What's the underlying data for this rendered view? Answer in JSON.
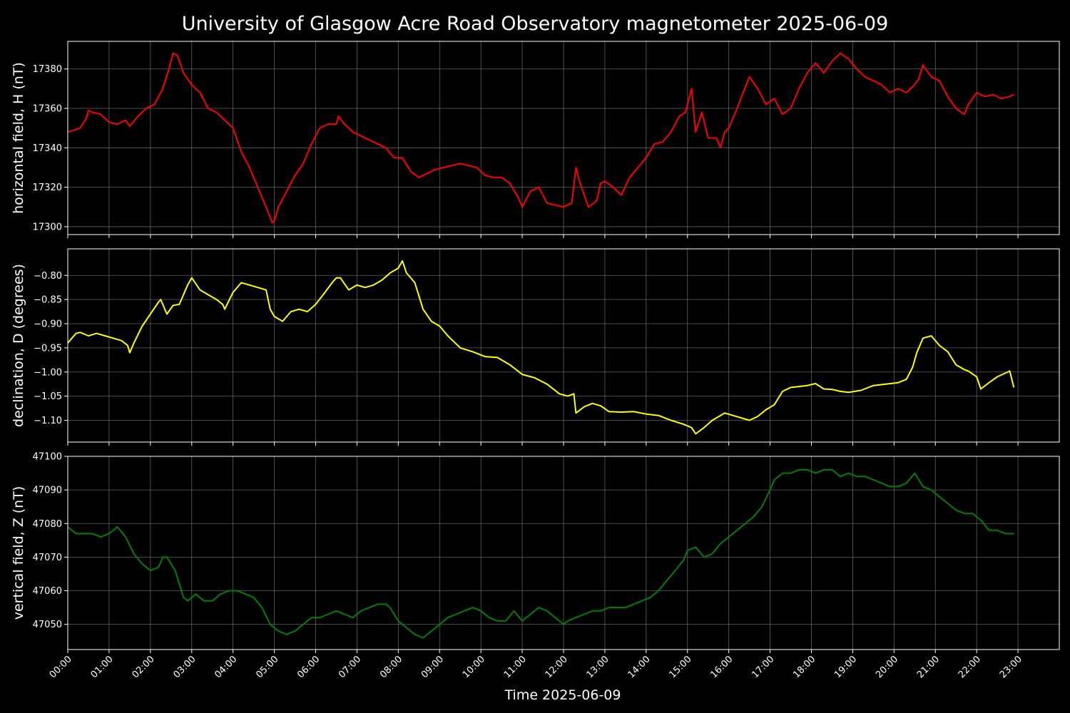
{
  "title": "University of Glasgow Acre Road Observatory magnetometer 2025-06-09",
  "xlabel": "Time 2025-06-09",
  "x_ticks": [
    "00:00",
    "01:00",
    "02:00",
    "03:00",
    "04:00",
    "05:00",
    "06:00",
    "07:00",
    "08:00",
    "09:00",
    "10:00",
    "11:00",
    "12:00",
    "13:00",
    "14:00",
    "15:00",
    "16:00",
    "17:00",
    "18:00",
    "19:00",
    "20:00",
    "21:00",
    "22:00",
    "23:00"
  ],
  "chart_data": [
    {
      "type": "line",
      "ylabel": "horizontal field, H (nT)",
      "color": "#ff0000",
      "xlim": [
        0,
        24
      ],
      "ylim": [
        17296,
        17394
      ],
      "yticks": [
        17300,
        17320,
        17340,
        17360,
        17380
      ],
      "grid": true,
      "x": [
        0,
        0.3,
        0.45,
        0.5,
        0.6,
        0.8,
        1.0,
        1.2,
        1.4,
        1.5,
        1.7,
        1.9,
        2.1,
        2.3,
        2.45,
        2.55,
        2.65,
        2.8,
        3.0,
        3.2,
        3.4,
        3.6,
        3.8,
        4.0,
        4.2,
        4.4,
        4.6,
        4.8,
        4.95,
        5.0,
        5.1,
        5.3,
        5.5,
        5.7,
        5.9,
        6.1,
        6.3,
        6.5,
        6.55,
        6.7,
        6.9,
        7.1,
        7.3,
        7.5,
        7.7,
        7.9,
        8.1,
        8.3,
        8.5,
        8.7,
        8.9,
        9.1,
        9.3,
        9.5,
        9.7,
        9.9,
        10.1,
        10.3,
        10.5,
        10.7,
        10.9,
        11.0,
        11.2,
        11.4,
        11.6,
        11.8,
        12.0,
        12.2,
        12.3,
        12.4,
        12.6,
        12.8,
        12.9,
        13.0,
        13.2,
        13.4,
        13.6,
        13.8,
        14.0,
        14.2,
        14.4,
        14.6,
        14.8,
        14.95,
        15.1,
        15.2,
        15.35,
        15.5,
        15.7,
        15.8,
        15.9,
        16.0,
        16.2,
        16.35,
        16.5,
        16.7,
        16.9,
        17.1,
        17.3,
        17.5,
        17.7,
        17.9,
        18.1,
        18.3,
        18.5,
        18.7,
        18.9,
        19.1,
        19.3,
        19.5,
        19.7,
        19.9,
        20.1,
        20.3,
        20.5,
        20.6,
        20.7,
        20.9,
        21.1,
        21.3,
        21.5,
        21.7,
        21.8,
        22.0,
        22.2,
        22.4,
        22.6,
        22.8,
        22.9
      ],
      "y": [
        17348,
        17350,
        17355,
        17359,
        17358,
        17357,
        17353,
        17352,
        17354,
        17351,
        17356,
        17360,
        17362,
        17370,
        17380,
        17388,
        17387,
        17378,
        17372,
        17368,
        17360,
        17358,
        17354,
        17350,
        17338,
        17330,
        17320,
        17310,
        17302,
        17303,
        17310,
        17318,
        17326,
        17332,
        17342,
        17350,
        17352,
        17352,
        17356,
        17352,
        17348,
        17346,
        17344,
        17342,
        17340,
        17335,
        17335,
        17328,
        17325,
        17327,
        17329,
        17330,
        17331,
        17332,
        17331,
        17330,
        17326,
        17325,
        17325,
        17322,
        17315,
        17310,
        17318,
        17320,
        17312,
        17311,
        17310,
        17312,
        17330,
        17322,
        17310,
        17313,
        17322,
        17323,
        17320,
        17316,
        17325,
        17330,
        17335,
        17342,
        17343,
        17348,
        17356,
        17358,
        17370,
        17348,
        17358,
        17345,
        17345,
        17340,
        17348,
        17350,
        17360,
        17368,
        17376,
        17370,
        17362,
        17365,
        17357,
        17360,
        17370,
        17378,
        17383,
        17378,
        17384,
        17388,
        17385,
        17380,
        17376,
        17374,
        17372,
        17368,
        17370,
        17368,
        17372,
        17375,
        17382,
        17376,
        17374,
        17366,
        17360,
        17357,
        17362,
        17368,
        17366,
        17367,
        17365,
        17366,
        17367
      ]
    },
    {
      "type": "line",
      "ylabel": "declination, D (degrees)",
      "color": "#ffff00",
      "xlim": [
        0,
        24
      ],
      "ylim": [
        -1.145,
        -0.745
      ],
      "yticks": [
        -0.8,
        -0.85,
        -0.9,
        -0.95,
        -1.0,
        -1.05,
        -1.1
      ],
      "ytick_labels": [
        "−0.80",
        "−0.85",
        "−0.90",
        "−0.95",
        "−1.00",
        "−1.05",
        "−1.10"
      ],
      "grid": true,
      "x": [
        0,
        0.1,
        0.2,
        0.3,
        0.5,
        0.7,
        0.9,
        1.1,
        1.3,
        1.45,
        1.5,
        1.6,
        1.8,
        2.0,
        2.2,
        2.25,
        2.4,
        2.55,
        2.7,
        2.9,
        3.0,
        3.2,
        3.4,
        3.6,
        3.75,
        3.8,
        4.0,
        4.2,
        4.4,
        4.6,
        4.8,
        4.9,
        5.0,
        5.2,
        5.4,
        5.6,
        5.8,
        6.0,
        6.2,
        6.4,
        6.5,
        6.6,
        6.8,
        7.0,
        7.2,
        7.4,
        7.6,
        7.8,
        8.0,
        8.1,
        8.2,
        8.4,
        8.6,
        8.8,
        9.0,
        9.2,
        9.5,
        9.8,
        10.1,
        10.4,
        10.7,
        11.0,
        11.3,
        11.6,
        11.9,
        12.1,
        12.25,
        12.3,
        12.5,
        12.7,
        12.9,
        13.1,
        13.4,
        13.7,
        14.0,
        14.3,
        14.6,
        14.9,
        15.1,
        15.2,
        15.4,
        15.6,
        15.8,
        15.9,
        16.1,
        16.3,
        16.5,
        16.7,
        16.9,
        17.1,
        17.3,
        17.5,
        17.7,
        17.9,
        18.1,
        18.3,
        18.5,
        18.7,
        18.9,
        19.2,
        19.5,
        19.8,
        20.1,
        20.3,
        20.45,
        20.55,
        20.7,
        20.9,
        21.1,
        21.3,
        21.5,
        21.7,
        21.8,
        22.0,
        22.1,
        22.3,
        22.5,
        22.7,
        22.8,
        22.9
      ],
      "y": [
        -0.94,
        -0.93,
        -0.92,
        -0.918,
        -0.925,
        -0.92,
        -0.925,
        -0.93,
        -0.935,
        -0.945,
        -0.96,
        -0.94,
        -0.905,
        -0.88,
        -0.855,
        -0.85,
        -0.88,
        -0.862,
        -0.86,
        -0.82,
        -0.805,
        -0.83,
        -0.84,
        -0.85,
        -0.86,
        -0.87,
        -0.835,
        -0.815,
        -0.82,
        -0.825,
        -0.83,
        -0.87,
        -0.885,
        -0.895,
        -0.875,
        -0.87,
        -0.875,
        -0.86,
        -0.838,
        -0.815,
        -0.805,
        -0.805,
        -0.83,
        -0.82,
        -0.825,
        -0.82,
        -0.81,
        -0.795,
        -0.785,
        -0.77,
        -0.795,
        -0.815,
        -0.87,
        -0.895,
        -0.905,
        -0.925,
        -0.95,
        -0.958,
        -0.968,
        -0.97,
        -0.985,
        -1.005,
        -1.012,
        -1.025,
        -1.045,
        -1.05,
        -1.045,
        -1.085,
        -1.072,
        -1.065,
        -1.07,
        -1.082,
        -1.083,
        -1.082,
        -1.087,
        -1.09,
        -1.1,
        -1.108,
        -1.115,
        -1.128,
        -1.115,
        -1.1,
        -1.09,
        -1.085,
        -1.09,
        -1.095,
        -1.1,
        -1.092,
        -1.078,
        -1.068,
        -1.04,
        -1.032,
        -1.03,
        -1.028,
        -1.024,
        -1.035,
        -1.036,
        -1.04,
        -1.042,
        -1.038,
        -1.028,
        -1.025,
        -1.022,
        -1.015,
        -0.99,
        -0.96,
        -0.93,
        -0.925,
        -0.945,
        -0.958,
        -0.985,
        -0.995,
        -0.998,
        -1.01,
        -1.035,
        -1.022,
        -1.01,
        -1.002,
        -0.998,
        -1.032
      ]
    },
    {
      "type": "line",
      "ylabel": "vertical field, Z (nT)",
      "color": "#008000",
      "xlim": [
        0,
        24
      ],
      "ylim": [
        47042.5,
        47100
      ],
      "yticks": [
        47050,
        47060,
        47070,
        47080,
        47090,
        47100
      ],
      "grid": true,
      "x": [
        0,
        0.2,
        0.4,
        0.6,
        0.8,
        1.0,
        1.2,
        1.4,
        1.6,
        1.8,
        2.0,
        2.2,
        2.3,
        2.4,
        2.6,
        2.8,
        2.9,
        3.1,
        3.3,
        3.5,
        3.7,
        3.9,
        4.1,
        4.3,
        4.5,
        4.7,
        4.9,
        5.1,
        5.3,
        5.5,
        5.7,
        5.9,
        6.1,
        6.3,
        6.5,
        6.7,
        6.9,
        7.1,
        7.3,
        7.5,
        7.7,
        7.8,
        8.0,
        8.2,
        8.4,
        8.6,
        8.8,
        9.0,
        9.2,
        9.4,
        9.6,
        9.8,
        10.0,
        10.2,
        10.4,
        10.6,
        10.8,
        11.0,
        11.2,
        11.4,
        11.6,
        11.8,
        12.0,
        12.1,
        12.3,
        12.5,
        12.7,
        12.9,
        13.1,
        13.3,
        13.5,
        13.7,
        13.9,
        14.1,
        14.3,
        14.5,
        14.7,
        14.9,
        15.0,
        15.2,
        15.4,
        15.6,
        15.8,
        16.0,
        16.2,
        16.4,
        16.6,
        16.8,
        17.0,
        17.1,
        17.3,
        17.5,
        17.7,
        17.9,
        18.1,
        18.3,
        18.5,
        18.7,
        18.9,
        19.1,
        19.3,
        19.5,
        19.7,
        19.9,
        20.1,
        20.3,
        20.5,
        20.6,
        20.7,
        20.9,
        21.1,
        21.3,
        21.5,
        21.7,
        21.9,
        22.1,
        22.3,
        22.5,
        22.7,
        22.9
      ],
      "y": [
        47079,
        47077,
        47077,
        47077,
        47076,
        47077,
        47079,
        47076,
        47071,
        47068,
        47066,
        47067,
        47070,
        47070,
        47066,
        47058,
        47057,
        47059,
        47057,
        47057,
        47059,
        47060,
        47060,
        47059,
        47058,
        47055,
        47050,
        47048,
        47047,
        47048,
        47050,
        47052,
        47052,
        47053,
        47054,
        47053,
        47052,
        47054,
        47055,
        47056,
        47056,
        47055,
        47051,
        47049,
        47047,
        47046,
        47048,
        47050,
        47052,
        47053,
        47054,
        47055,
        47054,
        47052,
        47051,
        47051,
        47054,
        47051,
        47053,
        47055,
        47054,
        47052,
        47050,
        47051,
        47052,
        47053,
        47054,
        47054,
        47055,
        47055,
        47055,
        47056,
        47057,
        47058,
        47060,
        47063,
        47066,
        47069,
        47072,
        47073,
        47070,
        47071,
        47074,
        47076,
        47078,
        47080,
        47082,
        47085,
        47090,
        47093,
        47095,
        47095,
        47096,
        47096,
        47095,
        47096,
        47096,
        47094,
        47095,
        47094,
        47094,
        47093,
        47092,
        47091,
        47091,
        47092,
        47095,
        47093,
        47091,
        47090,
        47088,
        47086,
        47084,
        47083,
        47083,
        47081,
        47078,
        47078,
        47077,
        47077
      ]
    }
  ]
}
